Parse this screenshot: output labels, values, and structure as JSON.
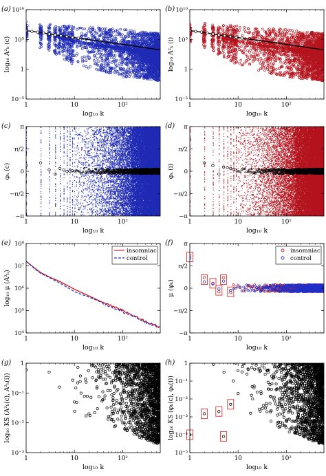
{
  "chart_data": [
    {
      "id": "a",
      "panel_label": "(a)",
      "type": "scatter",
      "xscale": "log",
      "yscale": "log",
      "xlim": [
        1,
        600
      ],
      "ylim": [
        1e-05,
        10000000000.0
      ],
      "xticks": [
        {
          "v": 1,
          "t": "1"
        },
        {
          "v": 10,
          "t": "10"
        },
        {
          "v": 100,
          "t": "10²"
        }
      ],
      "yticks": [
        {
          "v": 1e-05,
          "t": "10⁻⁵"
        },
        {
          "v": 1,
          "t": "1"
        },
        {
          "v": 100000.0,
          "t": "10⁵"
        },
        {
          "v": 10000000000.0,
          "t": "10¹⁰"
        }
      ],
      "xlabel": "log₁₀ k",
      "ylabel": "log₁₀ A²ₖ (c)",
      "series": [
        {
          "style": "cloud",
          "color": "#1f2bb4",
          "points": [
            [
              1,
              2000000.0
            ],
            [
              2,
              1000000.0
            ],
            [
              3,
              500000.0
            ],
            [
              5,
              200000.0
            ],
            [
              10,
              50000.0
            ],
            [
              30,
              10000.0
            ],
            [
              100,
              3000.0
            ],
            [
              300,
              500
            ],
            [
              600,
              200
            ]
          ],
          "lower": [
            [
              1,
              30000.0
            ],
            [
              3,
              1000.0
            ],
            [
              10,
              5
            ],
            [
              30,
              0.5
            ],
            [
              100,
              0.05
            ],
            [
              300,
              0.02
            ],
            [
              600,
              0.01
            ]
          ],
          "upper": [
            [
              1,
              100000000.0
            ],
            [
              3,
              50000000.0
            ],
            [
              10,
              20000000.0
            ],
            [
              100,
              5000000.0
            ],
            [
              600,
              1000000.0
            ]
          ]
        },
        {
          "style": "line",
          "color": "#000000",
          "points": [
            [
              1,
              3000000.0
            ],
            [
              2,
              1500000.0
            ],
            [
              3,
              800000.0
            ],
            [
              10,
              200000.0
            ],
            [
              30,
              60000.0
            ],
            [
              100,
              15000.0
            ],
            [
              300,
              4000.0
            ],
            [
              600,
              1800.0
            ]
          ]
        }
      ]
    },
    {
      "id": "b",
      "panel_label": "(b)",
      "type": "scatter",
      "xscale": "log",
      "yscale": "log",
      "xlim": [
        1,
        600
      ],
      "ylim": [
        1e-05,
        10000000000.0
      ],
      "xticks": [
        {
          "v": 1,
          "t": "1"
        },
        {
          "v": 10,
          "t": "10"
        },
        {
          "v": 100,
          "t": "10²"
        }
      ],
      "yticks": [
        {
          "v": 1e-05,
          "t": "10⁻⁵"
        },
        {
          "v": 1,
          "t": "1"
        },
        {
          "v": 100000.0,
          "t": "10⁵"
        },
        {
          "v": 10000000000.0,
          "t": "10¹⁰"
        }
      ],
      "xlabel": "log₁₀ k",
      "ylabel": "log₁₀ A²ₖ (i)",
      "series": [
        {
          "style": "cloud",
          "color": "#b4141e",
          "points": [
            [
              1,
              2000000.0
            ],
            [
              2,
              1000000.0
            ],
            [
              3,
              500000.0
            ],
            [
              5,
              200000.0
            ],
            [
              10,
              50000.0
            ],
            [
              30,
              10000.0
            ],
            [
              100,
              3000.0
            ],
            [
              300,
              500
            ],
            [
              600,
              200
            ]
          ],
          "lower": [
            [
              1,
              30000.0
            ],
            [
              3,
              1000.0
            ],
            [
              10,
              5
            ],
            [
              30,
              0.5
            ],
            [
              100,
              0.05
            ],
            [
              300,
              0.02
            ],
            [
              600,
              0.01
            ]
          ],
          "upper": [
            [
              1,
              100000000.0
            ],
            [
              3,
              50000000.0
            ],
            [
              10,
              20000000.0
            ],
            [
              100,
              5000000.0
            ],
            [
              600,
              1000000.0
            ]
          ]
        },
        {
          "style": "line",
          "color": "#000000",
          "points": [
            [
              1,
              3000000.0
            ],
            [
              2,
              1500000.0
            ],
            [
              3,
              800000.0
            ],
            [
              10,
              200000.0
            ],
            [
              30,
              60000.0
            ],
            [
              100,
              15000.0
            ],
            [
              300,
              4000.0
            ],
            [
              600,
              1800.0
            ]
          ]
        }
      ]
    },
    {
      "id": "c",
      "panel_label": "(c)",
      "type": "scatter",
      "xscale": "log",
      "yscale": "linear",
      "xlim": [
        1,
        600
      ],
      "ylim": [
        -3.1416,
        3.1416
      ],
      "xticks": [
        {
          "v": 1,
          "t": "1"
        },
        {
          "v": 10,
          "t": "10"
        },
        {
          "v": 100,
          "t": "10²"
        }
      ],
      "yticks": [
        {
          "v": -3.1416,
          "t": "−π"
        },
        {
          "v": -1.5708,
          "t": "−π/2"
        },
        {
          "v": 0,
          "t": "0"
        },
        {
          "v": 1.5708,
          "t": "π/2"
        },
        {
          "v": 3.1416,
          "t": "π"
        }
      ],
      "xlabel": "log₁₀ k",
      "ylabel": "φₖ (c)",
      "series": [
        {
          "style": "phase",
          "color": "#1f2bb4",
          "means": [
            [
              1,
              0.4
            ],
            [
              2,
              0.6
            ],
            [
              3,
              0.1
            ],
            [
              4,
              -0.2
            ],
            [
              5,
              0.2
            ],
            [
              7,
              0
            ],
            [
              10,
              0.05
            ],
            [
              30,
              0
            ],
            [
              100,
              0
            ],
            [
              600,
              0
            ]
          ]
        }
      ]
    },
    {
      "id": "d",
      "panel_label": "(d)",
      "type": "scatter",
      "xscale": "log",
      "yscale": "linear",
      "xlim": [
        1,
        600
      ],
      "ylim": [
        -3.1416,
        3.1416
      ],
      "xticks": [
        {
          "v": 1,
          "t": "1"
        },
        {
          "v": 10,
          "t": "10"
        },
        {
          "v": 100,
          "t": "10²"
        }
      ],
      "yticks": [
        {
          "v": -3.1416,
          "t": "−π"
        },
        {
          "v": -1.5708,
          "t": "−π/2"
        },
        {
          "v": 0,
          "t": "0"
        },
        {
          "v": 1.5708,
          "t": "π/2"
        },
        {
          "v": 3.1416,
          "t": "π"
        }
      ],
      "xlabel": "log₁₀ k",
      "ylabel": "φₖ (i)",
      "series": [
        {
          "style": "phase",
          "color": "#b4141e",
          "means": [
            [
              1,
              2.2
            ],
            [
              2,
              0.6
            ],
            [
              3,
              0.4
            ],
            [
              4,
              -0.2
            ],
            [
              5,
              0.3
            ],
            [
              7,
              0.2
            ],
            [
              10,
              0.05
            ],
            [
              30,
              0
            ],
            [
              100,
              0
            ],
            [
              600,
              0
            ]
          ]
        }
      ]
    },
    {
      "id": "e",
      "panel_label": "(e)",
      "type": "line",
      "xscale": "log",
      "yscale": "log",
      "xlim": [
        1,
        600
      ],
      "ylim": [
        10000.0,
        100000000.0
      ],
      "xticks": [
        {
          "v": 1,
          "t": "1"
        },
        {
          "v": 10,
          "t": "10"
        },
        {
          "v": 100,
          "t": "10²"
        }
      ],
      "yticks": [
        {
          "v": 10000.0,
          "t": "10⁴"
        },
        {
          "v": 100000.0,
          "t": "10⁵"
        },
        {
          "v": 1000000.0,
          "t": "10⁶"
        },
        {
          "v": 10000000.0,
          "t": "10⁷"
        },
        {
          "v": 100000000.0,
          "t": "10⁸"
        }
      ],
      "xlabel": "log₁₀ k",
      "ylabel": "log₁₀ μ (A²ₖ)",
      "legend": {
        "position": "top-right",
        "entries": [
          "insomniac",
          "control"
        ]
      },
      "series": [
        {
          "name": "insomniac",
          "style": "line",
          "color": "#d42020",
          "points": [
            [
              1,
              16000000.0
            ],
            [
              1.5,
              8000000.0
            ],
            [
              2,
              5000000.0
            ],
            [
              3,
              3200000.0
            ],
            [
              5,
              2000000.0
            ],
            [
              10,
              900000.0
            ],
            [
              20,
              450000.0
            ],
            [
              30,
              300000.0
            ],
            [
              50,
              180000.0
            ],
            [
              100,
              100000.0
            ],
            [
              200,
              50000.0
            ],
            [
              300,
              32000.0
            ],
            [
              600,
              18000.0
            ]
          ]
        },
        {
          "name": "control",
          "style": "dash",
          "color": "#2030c8",
          "points": [
            [
              1,
              16000000.0
            ],
            [
              1.5,
              7500000.0
            ],
            [
              2,
              4600000.0
            ],
            [
              3,
              3000000.0
            ],
            [
              5,
              1700000.0
            ],
            [
              10,
              700000.0
            ],
            [
              20,
              400000.0
            ],
            [
              30,
              280000.0
            ],
            [
              50,
              170000.0
            ],
            [
              100,
              90000.0
            ],
            [
              200,
              46000.0
            ],
            [
              300,
              30000.0
            ],
            [
              600,
              17000.0
            ]
          ]
        }
      ]
    },
    {
      "id": "f",
      "panel_label": "(f)",
      "type": "scatter",
      "xscale": "log",
      "yscale": "linear",
      "xlim": [
        1,
        600
      ],
      "ylim": [
        -3.1416,
        3.1416
      ],
      "xticks": [
        {
          "v": 1,
          "t": "1"
        },
        {
          "v": 10,
          "t": "10"
        },
        {
          "v": 100,
          "t": "10²"
        }
      ],
      "yticks": [
        {
          "v": -3.1416,
          "t": "−π"
        },
        {
          "v": -1.5708,
          "t": "−π/2"
        },
        {
          "v": 0,
          "t": "0"
        },
        {
          "v": 1.5708,
          "t": "π/2"
        },
        {
          "v": 3.1416,
          "t": "π"
        }
      ],
      "xlabel": "log₁₀ k",
      "ylabel": "μ (φₖ)",
      "legend": {
        "position": "top-right",
        "entries": [
          "insomniac",
          "control"
        ]
      },
      "series": [
        {
          "name": "insomniac",
          "style": "markers",
          "color": "#d42020",
          "points": [
            [
              1,
              2.3
            ],
            [
              2,
              0.75
            ],
            [
              3,
              0.35
            ],
            [
              4,
              -0.25
            ],
            [
              5,
              0.75
            ],
            [
              7,
              -0.3
            ]
          ]
        },
        {
          "name": "control",
          "style": "markers",
          "color": "#2030c8",
          "points": [
            [
              1,
              2.1
            ],
            [
              2,
              0.45
            ],
            [
              3,
              0.3
            ],
            [
              4,
              -0.05
            ],
            [
              5,
              0.5
            ],
            [
              7,
              -0.15
            ]
          ]
        }
      ],
      "highlight_boxes": [
        [
          1,
          2.2
        ],
        [
          2,
          0.6
        ],
        [
          3,
          0.35
        ],
        [
          4,
          -0.15
        ],
        [
          5,
          0.6
        ],
        [
          7,
          -0.25
        ]
      ]
    },
    {
      "id": "g",
      "panel_label": "(g)",
      "type": "scatter",
      "xscale": "log",
      "yscale": "log",
      "xlim": [
        1,
        600
      ],
      "ylim": [
        0.001,
        1
      ],
      "xticks": [
        {
          "v": 1,
          "t": "1"
        },
        {
          "v": 10,
          "t": "10"
        },
        {
          "v": 100,
          "t": "10²"
        }
      ],
      "yticks": [
        {
          "v": 0.001,
          "t": "10⁻³"
        },
        {
          "v": 0.01,
          "t": "10⁻²"
        },
        {
          "v": 0.1,
          "t": "10⁻¹"
        },
        {
          "v": 1,
          "t": "1"
        }
      ],
      "xlabel": "log₁₀ k",
      "ylabel": "log₁₀ KS (A²ₖ(c), A²ₖ(i))",
      "series": [
        {
          "style": "sparse",
          "color": "#000000",
          "points": [
            [
              1,
              0.6
            ],
            [
              3,
              0.5
            ],
            [
              10,
              0.05
            ],
            [
              20,
              0.02
            ],
            [
              30,
              0.03
            ],
            [
              60,
              0.02
            ],
            [
              100,
              0.01
            ],
            [
              300,
              0.01
            ],
            [
              500,
              0.005
            ]
          ]
        }
      ]
    },
    {
      "id": "h",
      "panel_label": "(h)",
      "type": "scatter",
      "xscale": "log",
      "yscale": "log",
      "xlim": [
        1,
        600
      ],
      "ylim": [
        1e-05,
        1
      ],
      "xticks": [
        {
          "v": 1,
          "t": "1"
        },
        {
          "v": 10,
          "t": "10"
        },
        {
          "v": 100,
          "t": "10²"
        }
      ],
      "yticks": [
        {
          "v": 1e-05,
          "t": "10⁻⁵"
        },
        {
          "v": 0.0001,
          "t": "10⁻⁴"
        },
        {
          "v": 0.001,
          "t": "10⁻³"
        },
        {
          "v": 0.01,
          "t": "10⁻²"
        },
        {
          "v": 0.1,
          "t": "10⁻¹"
        },
        {
          "v": 1,
          "t": "1"
        }
      ],
      "xlabel": "log₁₀ k",
      "ylabel": "log₁₀ KS (φₖ(c), φₖ(i))",
      "series": [
        {
          "style": "sparse",
          "color": "#000000",
          "points": [
            [
              1,
              0.0001
            ],
            [
              2,
              0.0015
            ],
            [
              4,
              0.002
            ],
            [
              5,
              8e-05
            ],
            [
              7,
              0.005
            ],
            [
              10,
              0.02
            ],
            [
              20,
              0.01
            ],
            [
              30,
              0.02
            ],
            [
              100,
              0.05
            ],
            [
              300,
              0.01
            ],
            [
              500,
              0.001
            ]
          ]
        }
      ],
      "highlight_boxes": [
        [
          1,
          0.0001
        ],
        [
          2,
          0.0015
        ],
        [
          4,
          0.002
        ],
        [
          5,
          8e-05
        ],
        [
          7,
          0.005
        ]
      ]
    }
  ]
}
